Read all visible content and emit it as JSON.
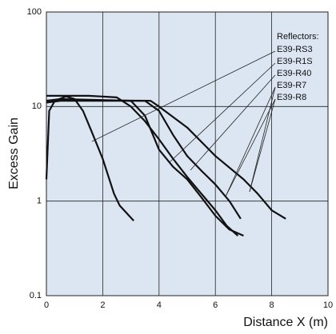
{
  "chart_data": {
    "type": "line",
    "x_label": "Distance X (m)",
    "y_label": "Excess Gain",
    "legend_title": "Reflectors:",
    "xlim": [
      0,
      10
    ],
    "xticks": [
      0,
      2,
      4,
      6,
      8,
      10
    ],
    "ylim": [
      0.1,
      100
    ],
    "yticks": [
      0.1,
      1,
      10,
      100
    ],
    "log_y": true,
    "grid": true,
    "series": [
      {
        "name": "E39-RS3",
        "color": "#111111",
        "x": [
          0,
          0.1,
          0.3,
          0.7,
          1.0,
          1.3,
          1.6,
          2.0,
          2.4,
          2.6,
          3.1
        ],
        "values": [
          1.7,
          9,
          11.5,
          12.8,
          12,
          9,
          5.5,
          2.8,
          1.2,
          0.9,
          0.62
        ]
      },
      {
        "name": "E39-R1S",
        "color": "#111111",
        "x": [
          0,
          0.5,
          1.5,
          2.5,
          3.0,
          3.5,
          4.0,
          4.5,
          5.0,
          5.5,
          6.0,
          6.4,
          6.8
        ],
        "values": [
          13,
          13,
          13,
          12.5,
          10,
          7,
          4.5,
          2.8,
          1.8,
          1.2,
          0.8,
          0.55,
          0.43
        ]
      },
      {
        "name": "E39-R40",
        "color": "#111111",
        "x": [
          0,
          0.5,
          1.5,
          3.0,
          3.5,
          4.0,
          4.5,
          5.0,
          5.5,
          6.0,
          6.5,
          7.0
        ],
        "values": [
          11.5,
          12,
          11.8,
          11.5,
          8,
          3.5,
          2.3,
          1.7,
          1.1,
          0.7,
          0.5,
          0.43
        ]
      },
      {
        "name": "E39-R7",
        "color": "#111111",
        "x": [
          0,
          0.5,
          2.0,
          3.5,
          4.0,
          4.5,
          5.0,
          5.5,
          6.0,
          6.5,
          6.9
        ],
        "values": [
          11,
          11.5,
          11.5,
          11.5,
          9,
          5,
          3,
          2.1,
          1.5,
          1,
          0.65
        ]
      },
      {
        "name": "E39-R8",
        "color": "#111111",
        "x": [
          0,
          0.5,
          2.0,
          3.7,
          4.0,
          5.0,
          6.0,
          7.0,
          7.5,
          8.0,
          8.5
        ],
        "values": [
          11.5,
          11.8,
          11.6,
          11.5,
          10,
          6,
          3,
          1.7,
          1.2,
          0.8,
          0.65
        ]
      }
    ]
  }
}
